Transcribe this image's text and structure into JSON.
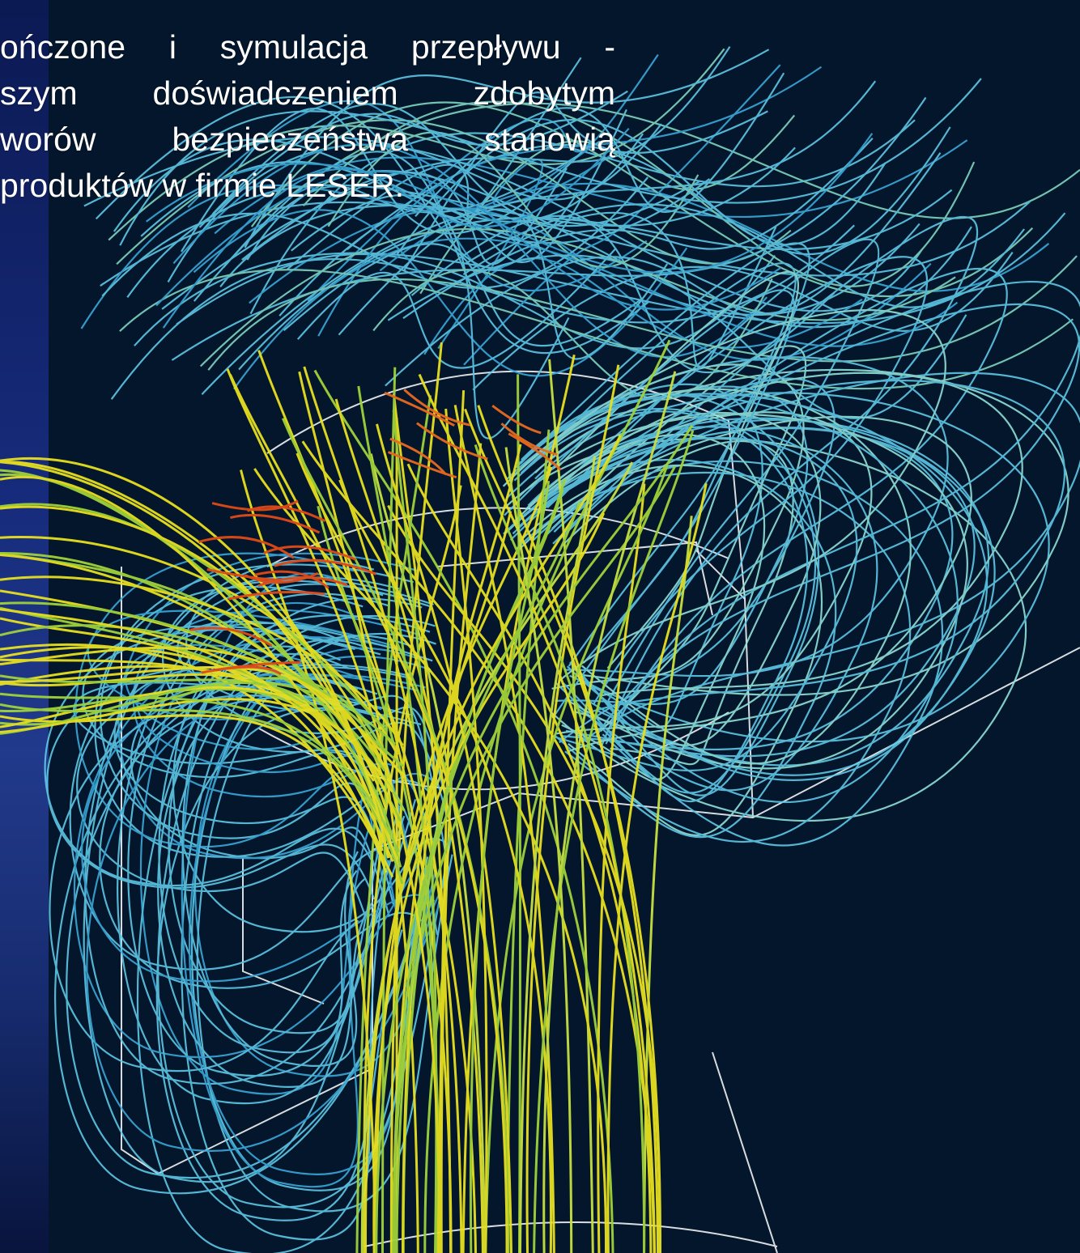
{
  "caption": {
    "lines": [
      "ończone i symulacja przepływu -",
      "szym doświadczeniem zdobytym",
      "worów  bezpieczeństwa  stanowią",
      "produktów w firmie LESER."
    ]
  },
  "colors": {
    "background": "#03162c",
    "streamline_hot": "#e8e020",
    "streamline_warm": "#9fd23a",
    "streamline_cool": "#5ec8e6",
    "streamline_peak": "#e04a18",
    "wireframe": "#ffffff"
  }
}
